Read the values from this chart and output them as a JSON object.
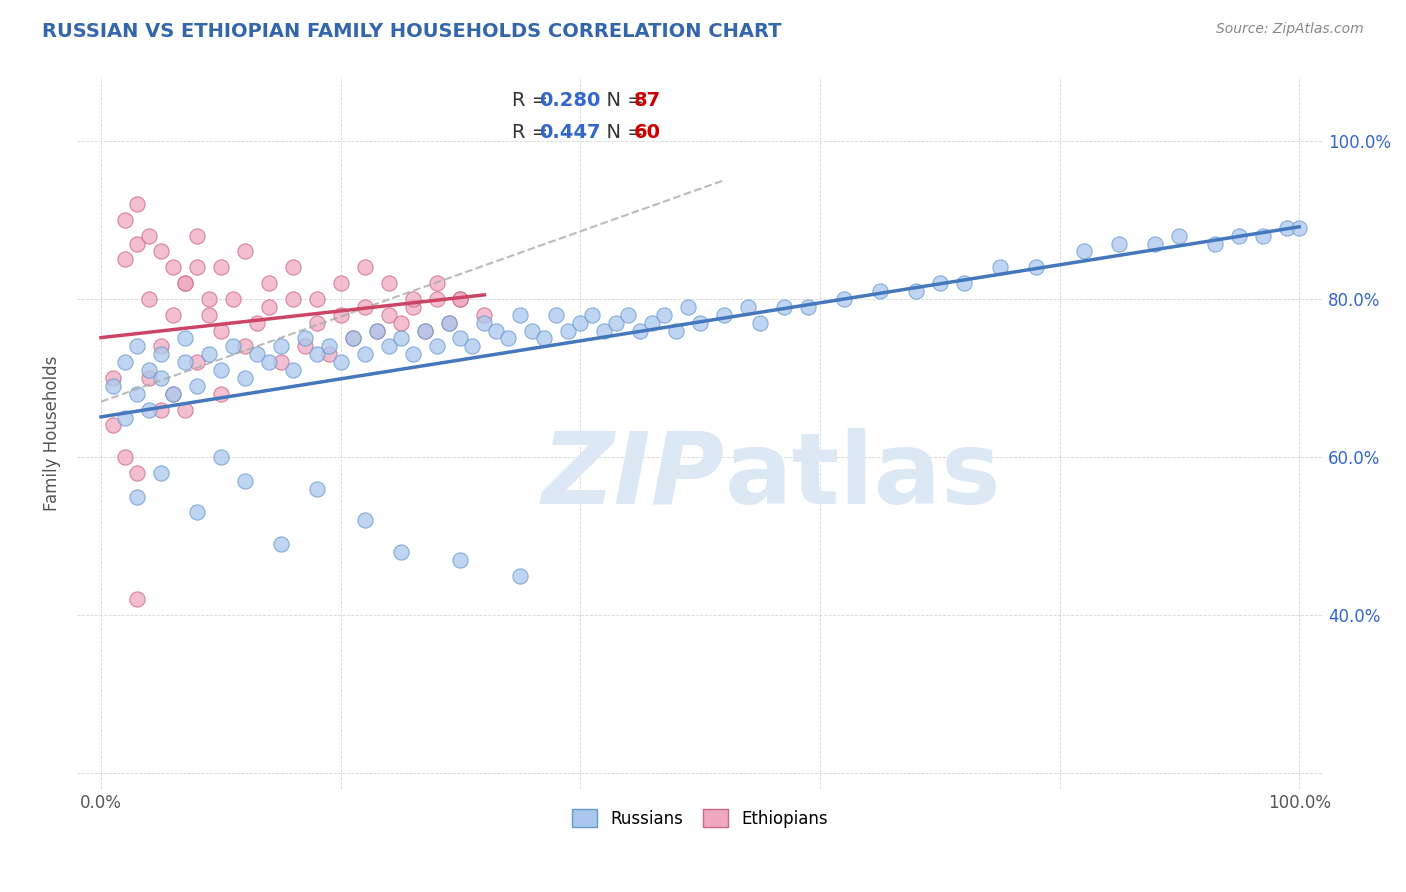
{
  "title": "RUSSIAN VS ETHIOPIAN FAMILY HOUSEHOLDS CORRELATION CHART",
  "source_text": "Source: ZipAtlas.com",
  "ylabel": "Family Households",
  "russian_R": 0.28,
  "russian_N": 87,
  "ethiopian_R": 0.447,
  "ethiopian_N": 60,
  "russian_color": "#aac8ee",
  "russian_edge_color": "#6699cc",
  "ethiopian_color": "#f0a8c0",
  "ethiopian_edge_color": "#cc6688",
  "russian_line_color": "#4477bb",
  "ethiopian_line_color": "#cc4466",
  "dashed_line_color": "#aaaaaa",
  "background_color": "#ffffff",
  "grid_color": "#bbbbbb",
  "watermark_color": "#dde8f5",
  "title_color": "#3366aa",
  "right_axis_color": "#3366cc",
  "figsize": [
    14.06,
    8.92
  ],
  "dpi": 100,
  "russian_x": [
    1,
    2,
    2,
    3,
    3,
    4,
    4,
    5,
    5,
    6,
    7,
    7,
    8,
    9,
    10,
    11,
    12,
    13,
    14,
    15,
    16,
    17,
    18,
    19,
    20,
    21,
    22,
    23,
    24,
    25,
    26,
    27,
    28,
    29,
    30,
    31,
    32,
    33,
    34,
    35,
    36,
    37,
    38,
    39,
    40,
    41,
    42,
    43,
    44,
    45,
    46,
    47,
    48,
    49,
    50,
    52,
    54,
    55,
    57,
    59,
    62,
    65,
    68,
    70,
    72,
    75,
    78,
    82,
    85,
    88,
    90,
    93,
    95,
    97,
    99,
    100,
    3,
    5,
    8,
    10,
    12,
    15,
    18,
    22,
    25,
    30,
    35
  ],
  "russian_y": [
    69,
    65,
    72,
    68,
    74,
    66,
    71,
    70,
    73,
    68,
    72,
    75,
    69,
    73,
    71,
    74,
    70,
    73,
    72,
    74,
    71,
    75,
    73,
    74,
    72,
    75,
    73,
    76,
    74,
    75,
    73,
    76,
    74,
    77,
    75,
    74,
    77,
    76,
    75,
    78,
    76,
    75,
    78,
    76,
    77,
    78,
    76,
    77,
    78,
    76,
    77,
    78,
    76,
    79,
    77,
    78,
    79,
    77,
    79,
    79,
    80,
    81,
    81,
    82,
    82,
    84,
    84,
    86,
    87,
    87,
    88,
    87,
    88,
    88,
    89,
    89,
    55,
    58,
    53,
    60,
    57,
    49,
    56,
    52,
    48,
    47,
    45
  ],
  "ethiopian_x": [
    1,
    1,
    2,
    2,
    3,
    3,
    4,
    4,
    5,
    5,
    6,
    6,
    7,
    7,
    8,
    8,
    9,
    10,
    10,
    11,
    12,
    13,
    14,
    15,
    16,
    17,
    18,
    19,
    20,
    21,
    22,
    23,
    24,
    25,
    26,
    27,
    28,
    29,
    30,
    2,
    3,
    4,
    5,
    6,
    7,
    8,
    9,
    10,
    12,
    14,
    16,
    18,
    20,
    22,
    24,
    26,
    28,
    30,
    32,
    3
  ],
  "ethiopian_y": [
    70,
    64,
    85,
    60,
    87,
    58,
    80,
    70,
    74,
    66,
    78,
    68,
    82,
    66,
    84,
    72,
    78,
    76,
    68,
    80,
    74,
    77,
    79,
    72,
    80,
    74,
    77,
    73,
    78,
    75,
    79,
    76,
    78,
    77,
    79,
    76,
    80,
    77,
    80,
    90,
    92,
    88,
    86,
    84,
    82,
    88,
    80,
    84,
    86,
    82,
    84,
    80,
    82,
    84,
    82,
    80,
    82,
    80,
    78,
    42
  ]
}
